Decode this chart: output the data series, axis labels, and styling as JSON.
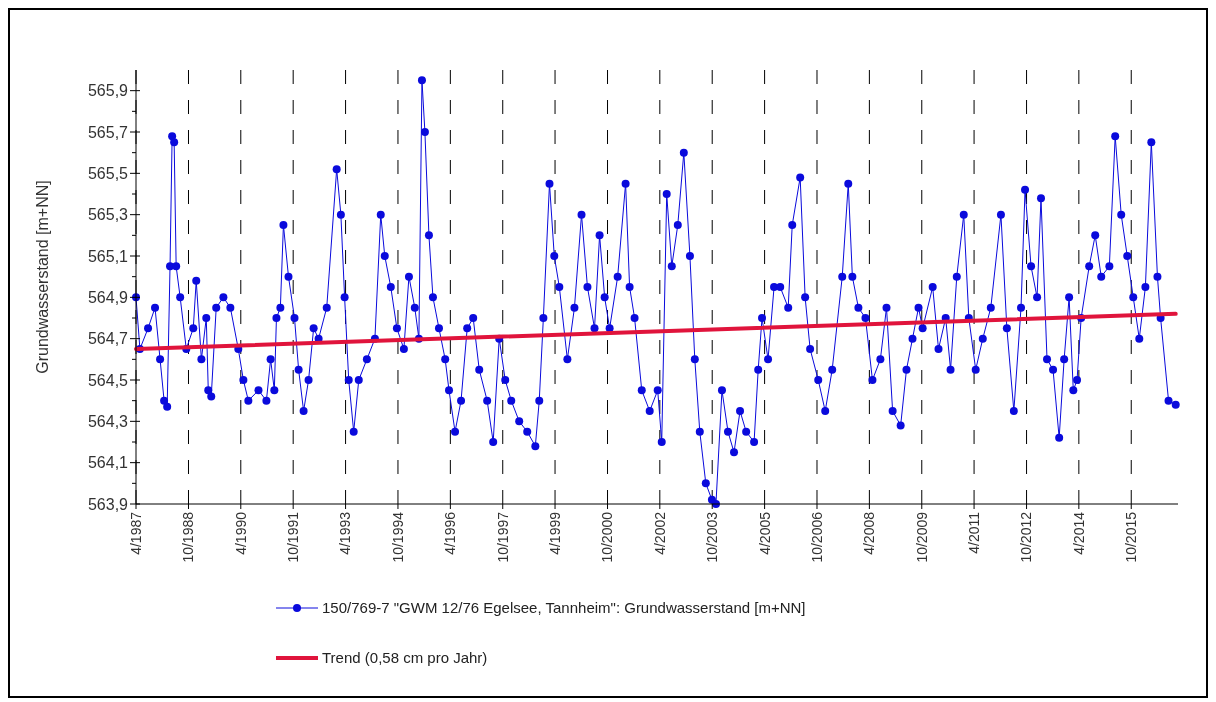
{
  "chart_data": {
    "type": "line",
    "ylabel": "Grundwasserstand [m+NN]",
    "xlim": [
      "1987-04-01",
      "2017-02-01"
    ],
    "ylim": [
      563.9,
      566.0
    ],
    "xticks": [
      {
        "value": "1987-04-01",
        "label": "4/1987"
      },
      {
        "value": "1988-10-01",
        "label": "10/1988"
      },
      {
        "value": "1990-04-01",
        "label": "4/1990"
      },
      {
        "value": "1991-10-01",
        "label": "10/1991"
      },
      {
        "value": "1993-04-01",
        "label": "4/1993"
      },
      {
        "value": "1994-10-01",
        "label": "10/1994"
      },
      {
        "value": "1996-04-01",
        "label": "4/1996"
      },
      {
        "value": "1997-10-01",
        "label": "10/1997"
      },
      {
        "value": "1999-04-01",
        "label": "4/1999"
      },
      {
        "value": "2000-10-01",
        "label": "10/2000"
      },
      {
        "value": "2002-04-01",
        "label": "4/2002"
      },
      {
        "value": "2003-10-01",
        "label": "10/2003"
      },
      {
        "value": "2005-04-01",
        "label": "4/2005"
      },
      {
        "value": "2006-10-01",
        "label": "10/2006"
      },
      {
        "value": "2008-04-01",
        "label": "4/2008"
      },
      {
        "value": "2009-10-01",
        "label": "10/2009"
      },
      {
        "value": "2011-04-01",
        "label": "4/2011"
      },
      {
        "value": "2012-10-01",
        "label": "10/2012"
      },
      {
        "value": "2014-04-01",
        "label": "4/2014"
      },
      {
        "value": "2015-10-01",
        "label": "10/2015"
      }
    ],
    "yticks": [
      {
        "value": 563.9,
        "label": "563,9"
      },
      {
        "value": 564.0,
        "label": null
      },
      {
        "value": 564.1,
        "label": "564,1"
      },
      {
        "value": 564.2,
        "label": null
      },
      {
        "value": 564.3,
        "label": "564,3"
      },
      {
        "value": 564.4,
        "label": null
      },
      {
        "value": 564.5,
        "label": "564,5"
      },
      {
        "value": 564.6,
        "label": null
      },
      {
        "value": 564.7,
        "label": "564,7"
      },
      {
        "value": 564.8,
        "label": null
      },
      {
        "value": 564.9,
        "label": "564,9"
      },
      {
        "value": 565.0,
        "label": null
      },
      {
        "value": 565.1,
        "label": "565,1"
      },
      {
        "value": 565.2,
        "label": null
      },
      {
        "value": 565.3,
        "label": "565,3"
      },
      {
        "value": 565.4,
        "label": null
      },
      {
        "value": 565.5,
        "label": "565,5"
      },
      {
        "value": 565.6,
        "label": null
      },
      {
        "value": 565.7,
        "label": "565,7"
      },
      {
        "value": 565.8,
        "label": null
      },
      {
        "value": 565.9,
        "label": "565,9"
      }
    ],
    "grid": "x",
    "legend": "bottom",
    "series": [
      {
        "name": "150/769-7 \"GWM 12/76 Egelsee, Tannheim\": Grundwasserstand [m+NN]",
        "color": "#0a0adc",
        "marker": "circle",
        "line_style": "solid",
        "x": [
          "1987-04-01",
          "1987-05-12",
          "1987-08-05",
          "1987-10-17",
          "1987-12-09",
          "1988-01-20",
          "1988-02-21",
          "1988-03-22",
          "1988-04-13",
          "1988-05-04",
          "1988-05-25",
          "1988-07-06",
          "1988-09-08",
          "1988-11-20",
          "1988-12-21",
          "1989-02-13",
          "1989-04-05",
          "1989-04-26",
          "1989-05-27",
          "1989-07-18",
          "1989-10-01",
          "1989-12-13",
          "1990-03-06",
          "1990-04-28",
          "1990-06-19",
          "1990-10-03",
          "1990-12-25",
          "1991-02-07",
          "1991-03-18",
          "1991-04-09",
          "1991-05-20",
          "1991-06-21",
          "1991-08-13",
          "1991-10-15",
          "1991-11-27",
          "1992-01-18",
          "1992-03-10",
          "1992-05-02",
          "1992-06-23",
          "1992-09-16",
          "1992-12-29",
          "1993-02-11",
          "1993-03-22",
          "1993-05-04",
          "1993-06-25",
          "1993-08-17",
          "1993-11-10",
          "1994-02-02",
          "1994-04-04",
          "1994-05-16",
          "1994-07-18",
          "1994-09-20",
          "1994-12-02",
          "1995-01-24",
          "1995-03-26",
          "1995-05-08",
          "1995-06-09",
          "1995-07-10",
          "1995-08-21",
          "1995-10-02",
          "1995-12-04",
          "1996-02-07",
          "1996-03-18",
          "1996-05-20",
          "1996-07-22",
          "1996-09-24",
          "1996-11-26",
          "1997-01-28",
          "1997-04-21",
          "1997-06-23",
          "1997-08-25",
          "1997-10-27",
          "1997-12-29",
          "1998-03-22",
          "1998-06-14",
          "1998-09-07",
          "1998-10-18",
          "1998-11-30",
          "1999-02-02",
          "1999-03-24",
          "1999-05-16",
          "1999-08-08",
          "1999-10-21",
          "2000-01-03",
          "2000-03-05",
          "2000-05-18",
          "2000-07-10",
          "2000-09-01",
          "2000-10-23",
          "2001-01-15",
          "2001-04-08",
          "2001-05-20",
          "2001-07-11",
          "2001-09-24",
          "2001-12-16",
          "2002-03-10",
          "2002-04-21",
          "2002-06-12",
          "2002-08-04",
          "2002-10-06",
          "2002-12-08",
          "2003-02-10",
          "2003-04-02",
          "2003-05-24",
          "2003-07-26",
          "2003-09-28",
          "2003-11-09",
          "2004-01-11",
          "2004-03-14",
          "2004-05-16",
          "2004-07-18",
          "2004-09-20",
          "2004-12-12",
          "2005-01-24",
          "2005-03-05",
          "2005-05-07",
          "2005-07-09",
          "2005-09-11",
          "2005-12-04",
          "2006-01-15",
          "2006-04-08",
          "2006-05-30",
          "2006-07-21",
          "2006-10-14",
          "2006-12-26",
          "2007-03-09",
          "2007-06-22",
          "2007-08-24",
          "2007-10-06",
          "2007-12-08",
          "2008-02-20",
          "2008-05-03",
          "2008-07-25",
          "2008-09-27",
          "2008-11-30",
          "2009-02-22",
          "2009-04-24",
          "2009-06-26",
          "2009-08-28",
          "2009-10-10",
          "2010-01-23",
          "2010-03-25",
          "2010-06-08",
          "2010-07-29",
          "2010-10-02",
          "2010-12-14",
          "2011-02-05",
          "2011-04-18",
          "2011-07-01",
          "2011-09-23",
          "2012-01-07",
          "2012-03-09",
          "2012-05-21",
          "2012-08-04",
          "2012-09-15",
          "2012-11-17",
          "2013-01-19",
          "2013-03-01",
          "2013-05-03",
          "2013-07-05",
          "2013-09-07",
          "2013-10-29",
          "2013-12-20",
          "2014-02-02",
          "2014-03-13",
          "2014-04-25",
          "2014-07-18",
          "2014-09-19",
          "2014-11-21",
          "2015-02-14",
          "2015-04-16",
          "2015-06-18",
          "2015-08-20",
          "2015-10-22",
          "2015-12-24",
          "2016-02-26",
          "2016-04-28",
          "2016-07-01",
          "2016-08-03",
          "2016-10-25",
          "2017-01-08"
        ],
        "values": [
          564.9,
          564.65,
          564.75,
          564.85,
          564.6,
          564.4,
          564.37,
          565.05,
          565.68,
          565.65,
          565.05,
          564.9,
          564.65,
          564.75,
          564.98,
          564.6,
          564.8,
          564.45,
          564.42,
          564.85,
          564.9,
          564.85,
          564.65,
          564.5,
          564.4,
          564.45,
          564.4,
          564.6,
          564.45,
          564.8,
          564.85,
          565.25,
          565.0,
          564.8,
          564.55,
          564.35,
          564.5,
          564.75,
          564.7,
          564.85,
          565.52,
          565.3,
          564.9,
          564.5,
          564.25,
          564.5,
          564.6,
          564.7,
          565.3,
          565.1,
          564.95,
          564.75,
          564.65,
          565.0,
          564.85,
          564.7,
          565.95,
          565.7,
          565.2,
          564.9,
          564.75,
          564.6,
          564.45,
          564.25,
          564.4,
          564.75,
          564.8,
          564.55,
          564.4,
          564.2,
          564.7,
          564.5,
          564.4,
          564.3,
          564.25,
          564.18,
          564.4,
          564.8,
          565.45,
          565.1,
          564.95,
          564.6,
          564.85,
          565.3,
          564.95,
          564.75,
          565.2,
          564.9,
          564.75,
          565.0,
          565.45,
          564.95,
          564.8,
          564.45,
          564.35,
          564.45,
          564.2,
          565.4,
          565.05,
          565.25,
          565.6,
          565.1,
          564.6,
          564.25,
          564.0,
          563.92,
          563.9,
          564.45,
          564.25,
          564.15,
          564.35,
          564.25,
          564.2,
          564.55,
          564.8,
          564.6,
          564.95,
          564.95,
          564.85,
          565.25,
          565.48,
          564.9,
          564.65,
          564.5,
          564.35,
          564.55,
          565.0,
          565.45,
          565.0,
          564.85,
          564.8,
          564.5,
          564.6,
          564.85,
          564.35,
          564.28,
          564.55,
          564.7,
          564.85,
          564.75,
          564.95,
          564.65,
          564.8,
          564.55,
          565.0,
          565.3,
          564.8,
          564.55,
          564.7,
          564.85,
          565.3,
          564.75,
          564.35,
          564.85,
          565.42,
          565.05,
          564.9,
          565.38,
          564.6,
          564.55,
          564.22,
          564.6,
          564.9,
          564.45,
          564.5,
          564.8,
          565.05,
          565.2,
          565.0,
          565.05,
          565.68,
          565.3,
          565.1,
          564.9,
          564.7,
          564.95,
          565.65,
          565.0,
          564.8,
          564.4,
          564.38
        ]
      },
      {
        "name": "Trend (0,58 cm pro Jahr)",
        "color": "#e0143c",
        "marker": "none",
        "line_style": "solid",
        "x": [
          "1987-04-01",
          "2017-01-08"
        ],
        "values": [
          564.65,
          564.82
        ]
      }
    ]
  }
}
